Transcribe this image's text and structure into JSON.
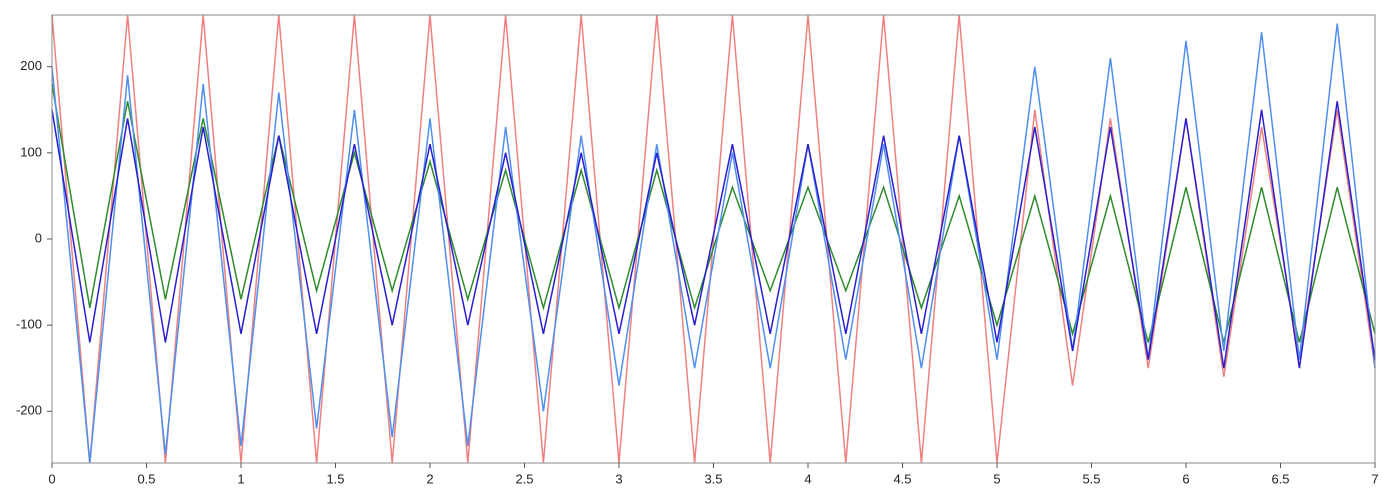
{
  "chart_data": {
    "type": "line",
    "x": [
      0,
      0.2,
      0.4,
      0.6,
      0.8,
      1,
      1.2,
      1.4,
      1.6,
      1.8,
      2,
      2.2,
      2.4,
      2.6,
      2.8,
      3,
      3.2,
      3.4,
      3.6,
      3.8,
      4,
      4.2,
      4.4,
      4.6,
      4.8,
      5,
      5.2,
      5.4,
      5.6,
      5.8,
      6,
      6.2,
      6.4,
      6.6,
      6.8,
      7
    ],
    "series": [
      {
        "color": "#f08080",
        "values": [
          260,
          -260,
          260,
          -260,
          260,
          -260,
          260,
          -260,
          260,
          -260,
          260,
          -260,
          260,
          -260,
          260,
          -260,
          260,
          -260,
          260,
          -260,
          260,
          -260,
          260,
          -260,
          260,
          -260,
          150,
          -170,
          140,
          -150,
          140,
          -160,
          130,
          -140,
          150,
          -150
        ]
      },
      {
        "color": "#2e8b2e",
        "values": [
          180,
          -80,
          160,
          -70,
          140,
          -70,
          120,
          -60,
          100,
          -60,
          90,
          -70,
          80,
          -80,
          80,
          -80,
          80,
          -80,
          60,
          -60,
          60,
          -60,
          60,
          -80,
          50,
          -100,
          50,
          -110,
          50,
          -120,
          60,
          -120,
          60,
          -120,
          60,
          -110
        ]
      },
      {
        "color": "#4f8ff0",
        "values": [
          200,
          -260,
          190,
          -250,
          180,
          -240,
          170,
          -220,
          150,
          -230,
          140,
          -240,
          130,
          -200,
          120,
          -170,
          110,
          -150,
          100,
          -150,
          110,
          -140,
          110,
          -150,
          120,
          -140,
          200,
          -130,
          210,
          -140,
          230,
          -130,
          240,
          -140,
          250,
          -150
        ]
      },
      {
        "color": "#2a1fd0",
        "values": [
          150,
          -120,
          140,
          -120,
          130,
          -110,
          120,
          -110,
          110,
          -100,
          110,
          -100,
          100,
          -110,
          100,
          -110,
          100,
          -100,
          110,
          -110,
          110,
          -110,
          120,
          -110,
          120,
          -120,
          130,
          -130,
          130,
          -140,
          140,
          -150,
          150,
          -150,
          160,
          -140
        ]
      }
    ],
    "xlim": [
      0,
      7
    ],
    "xticks": [
      0,
      0.5,
      1,
      1.5,
      2,
      2.5,
      3,
      3.5,
      4,
      4.5,
      5,
      5.5,
      6,
      6.5,
      7
    ],
    "ylim": [
      -260,
      260
    ],
    "yticks": [
      200,
      100,
      0,
      -100,
      -200
    ]
  }
}
